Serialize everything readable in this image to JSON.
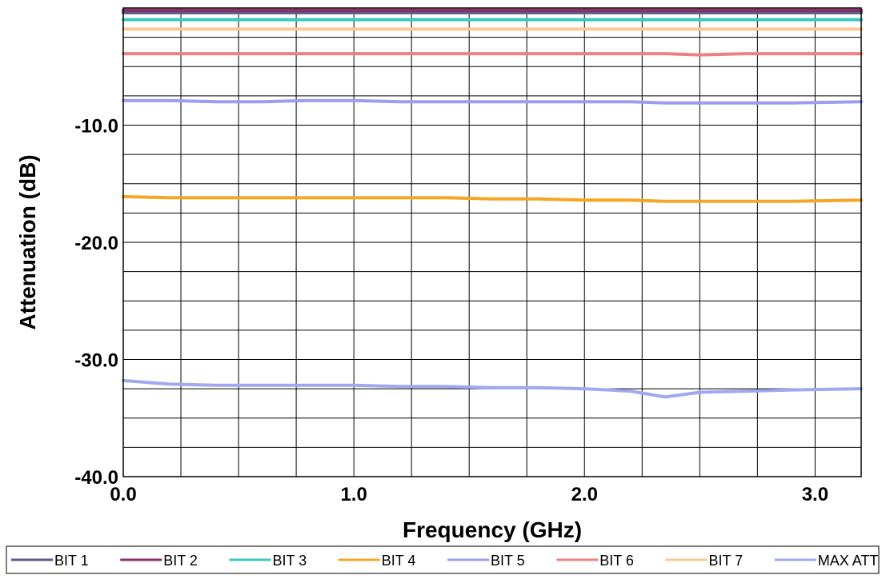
{
  "chart_data": {
    "type": "line",
    "title": "",
    "xlabel": "Frequency (GHz)",
    "ylabel": "Attenuation (dB)",
    "xlim": [
      0.0,
      3.2
    ],
    "ylim": [
      -40.0,
      0.0
    ],
    "x_ticks": [
      0.0,
      1.0,
      2.0,
      3.0
    ],
    "x_tick_labels": [
      "0.0",
      "1.0",
      "2.0",
      "3.0"
    ],
    "y_ticks": [
      -10.0,
      -20.0,
      -30.0,
      -40.0
    ],
    "y_tick_labels": [
      "-10.0",
      "-20.0",
      "-30.0",
      "-40.0"
    ],
    "x_minor_step": 0.25,
    "y_minor_step": 2.5,
    "grid": true,
    "legend_position": "bottom",
    "x": [
      0.0,
      0.2,
      0.4,
      0.6,
      0.8,
      1.0,
      1.2,
      1.4,
      1.6,
      1.8,
      2.0,
      2.2,
      2.35,
      2.5,
      2.7,
      2.9,
      3.2
    ],
    "series": [
      {
        "name": "BIT 1",
        "color": "#5a5a8c",
        "values": [
          -0.4,
          -0.4,
          -0.4,
          -0.4,
          -0.4,
          -0.4,
          -0.4,
          -0.4,
          -0.4,
          -0.4,
          -0.4,
          -0.4,
          -0.4,
          -0.4,
          -0.4,
          -0.4,
          -0.4
        ]
      },
      {
        "name": "BIT 2",
        "color": "#8b2f6b",
        "values": [
          -0.2,
          -0.2,
          -0.2,
          -0.2,
          -0.2,
          -0.2,
          -0.2,
          -0.2,
          -0.2,
          -0.2,
          -0.2,
          -0.2,
          -0.2,
          -0.2,
          -0.2,
          -0.2,
          -0.2
        ]
      },
      {
        "name": "BIT 3",
        "color": "#3cc8c0",
        "values": [
          -1.0,
          -1.0,
          -1.0,
          -1.0,
          -1.0,
          -1.0,
          -1.0,
          -1.0,
          -1.0,
          -1.0,
          -1.0,
          -1.0,
          -1.0,
          -1.0,
          -1.0,
          -1.0,
          -1.0
        ]
      },
      {
        "name": "BIT 4",
        "color": "#f5a623",
        "values": [
          -16.1,
          -16.2,
          -16.2,
          -16.2,
          -16.2,
          -16.2,
          -16.2,
          -16.2,
          -16.3,
          -16.3,
          -16.4,
          -16.4,
          -16.5,
          -16.5,
          -16.5,
          -16.5,
          -16.4
        ]
      },
      {
        "name": "BIT 5",
        "color": "#9c9cf0",
        "values": [
          -7.9,
          -7.9,
          -8.0,
          -8.0,
          -7.9,
          -7.9,
          -8.0,
          -8.0,
          -8.0,
          -8.0,
          -8.0,
          -8.0,
          -8.1,
          -8.1,
          -8.1,
          -8.1,
          -8.0
        ]
      },
      {
        "name": "BIT 6",
        "color": "#f08080",
        "values": [
          -3.9,
          -3.9,
          -3.9,
          -3.9,
          -3.9,
          -3.9,
          -3.9,
          -3.9,
          -3.9,
          -3.9,
          -3.9,
          -3.9,
          -3.9,
          -4.0,
          -3.9,
          -3.9,
          -3.9
        ]
      },
      {
        "name": "BIT 7",
        "color": "#f9c98f",
        "values": [
          -1.8,
          -1.8,
          -1.8,
          -1.8,
          -1.8,
          -1.8,
          -1.8,
          -1.8,
          -1.8,
          -1.8,
          -1.8,
          -1.8,
          -1.8,
          -1.8,
          -1.8,
          -1.8,
          -1.8
        ]
      },
      {
        "name": "MAX ATT",
        "color": "#a0a8f0",
        "values": [
          -31.8,
          -32.1,
          -32.2,
          -32.2,
          -32.2,
          -32.2,
          -32.3,
          -32.3,
          -32.4,
          -32.4,
          -32.5,
          -32.7,
          -33.2,
          -32.8,
          -32.7,
          -32.6,
          -32.5
        ]
      }
    ]
  }
}
